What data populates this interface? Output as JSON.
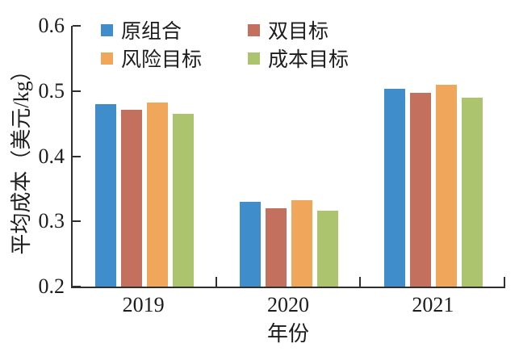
{
  "chart_data": {
    "type": "bar",
    "title": "",
    "xlabel": "年份",
    "ylabel": "平均成本（美元/kg）",
    "categories": [
      "2019",
      "2020",
      "2021"
    ],
    "series": [
      {
        "name": "原组合",
        "color": "#3f8ecb",
        "values": [
          0.48,
          0.33,
          0.503
        ]
      },
      {
        "name": "双目标",
        "color": "#c4705f",
        "values": [
          0.471,
          0.32,
          0.497
        ]
      },
      {
        "name": "风险目标",
        "color": "#f0a75c",
        "values": [
          0.483,
          0.332,
          0.51
        ]
      },
      {
        "name": "成本目标",
        "color": "#adc46e",
        "values": [
          0.465,
          0.317,
          0.49
        ]
      }
    ],
    "legend_order": [
      "原组合",
      "双目标",
      "风险目标",
      "成本目标"
    ],
    "legend_position": "top-left-inside",
    "ylim": [
      0.2,
      0.6
    ],
    "yticks": [
      "0.2",
      "0.3",
      "0.4",
      "0.5",
      "0.6"
    ],
    "grid": false,
    "axis_color": "#2f2f2f",
    "text_color": "#1c1c1c"
  }
}
